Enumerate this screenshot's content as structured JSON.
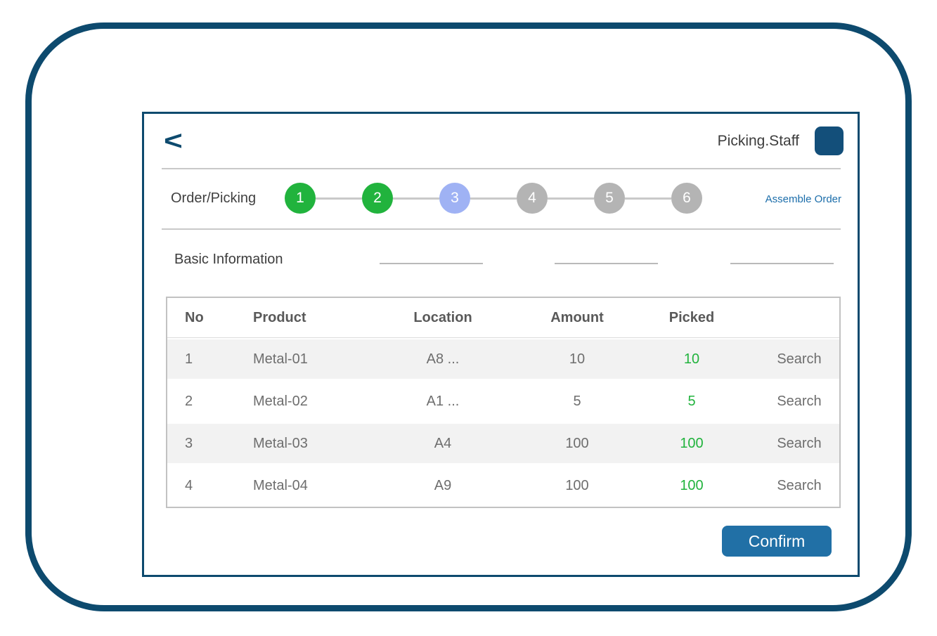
{
  "header": {
    "back_label": "<",
    "user_label": "Picking.Staff"
  },
  "stepper": {
    "label": "Order/Picking",
    "action_label": "Assemble Order",
    "steps": [
      {
        "num": "1",
        "state": "done"
      },
      {
        "num": "2",
        "state": "done"
      },
      {
        "num": "3",
        "state": "current"
      },
      {
        "num": "4",
        "state": "pending"
      },
      {
        "num": "5",
        "state": "pending"
      },
      {
        "num": "6",
        "state": "pending"
      }
    ]
  },
  "section": {
    "title": "Basic Information",
    "empty_fields": 3
  },
  "table": {
    "headers": [
      "No",
      "Product",
      "Location",
      "Amount",
      "Picked"
    ],
    "rows": [
      {
        "no": "1",
        "product": "Metal-01",
        "location": "A8 ...",
        "amount": "10",
        "picked": "10",
        "action": "Search"
      },
      {
        "no": "2",
        "product": "Metal-02",
        "location": "A1 ...",
        "amount": "5",
        "picked": "5",
        "action": "Search"
      },
      {
        "no": "3",
        "product": "Metal-03",
        "location": "A4",
        "amount": "100",
        "picked": "100",
        "action": "Search"
      },
      {
        "no": "4",
        "product": "Metal-04",
        "location": "A9",
        "amount": "100",
        "picked": "100",
        "action": "Search"
      }
    ]
  },
  "footer": {
    "confirm_label": "Confirm"
  },
  "colors": {
    "frame_navy": "#0d4a6e",
    "avatar_blue": "#134f7a",
    "confirm_blue": "#2170a6",
    "link_blue": "#1b6daa",
    "step_done_green": "#21b33d",
    "step_current_periwinkle": "#9fb2f4",
    "step_pending_gray": "#b4b4b4",
    "picked_green": "#21b33d",
    "zebra_gray": "#f2f2f2"
  }
}
